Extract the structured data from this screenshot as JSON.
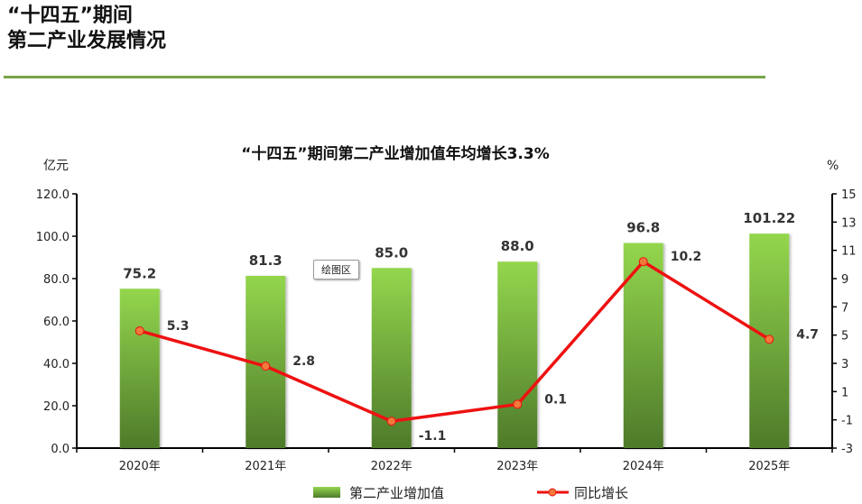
{
  "page": {
    "title_line1": "“十四五”期间",
    "title_line2": "第二产业发展情况"
  },
  "tooltip_label": "绘图区",
  "colors": {
    "bar_top": "#93d64d",
    "bar_bottom": "#4e7a2a",
    "line": "#ee1111",
    "marker": "#f07a3a",
    "rule": "#77a44a"
  },
  "chart_data": {
    "type": "bar",
    "title": "“十四五”期间第二产业增加值年均增长3.3%",
    "y_unit_left": "亿元",
    "y_unit_right": "%",
    "categories": [
      "2020年",
      "2021年",
      "2022年",
      "2023年",
      "2024年",
      "2025年"
    ],
    "series": [
      {
        "name": "第二产业增加值",
        "type": "bar",
        "axis": "left",
        "values": [
          75.2,
          81.3,
          85.0,
          88.0,
          96.8,
          101.22
        ],
        "labels": [
          "75.2",
          "81.3",
          "85.0",
          "88.0",
          "96.8",
          "101.22"
        ]
      },
      {
        "name": "同比增长",
        "type": "line",
        "axis": "right",
        "values": [
          5.3,
          2.8,
          -1.1,
          0.1,
          10.2,
          4.7
        ],
        "labels": [
          "5.3",
          "2.8",
          "-1.1",
          "0.1",
          "10.2",
          "4.7"
        ]
      }
    ],
    "y_left": {
      "min": 0,
      "max": 120,
      "ticks": [
        "0.0",
        "20.0",
        "40.0",
        "60.0",
        "80.0",
        "100.0",
        "120.0"
      ]
    },
    "y_right": {
      "min": -3,
      "max": 15,
      "ticks": [
        "-3",
        "-1",
        "1",
        "3",
        "5",
        "7",
        "9",
        "11",
        "13",
        "15"
      ]
    },
    "grid": false,
    "legend_position": "bottom"
  }
}
